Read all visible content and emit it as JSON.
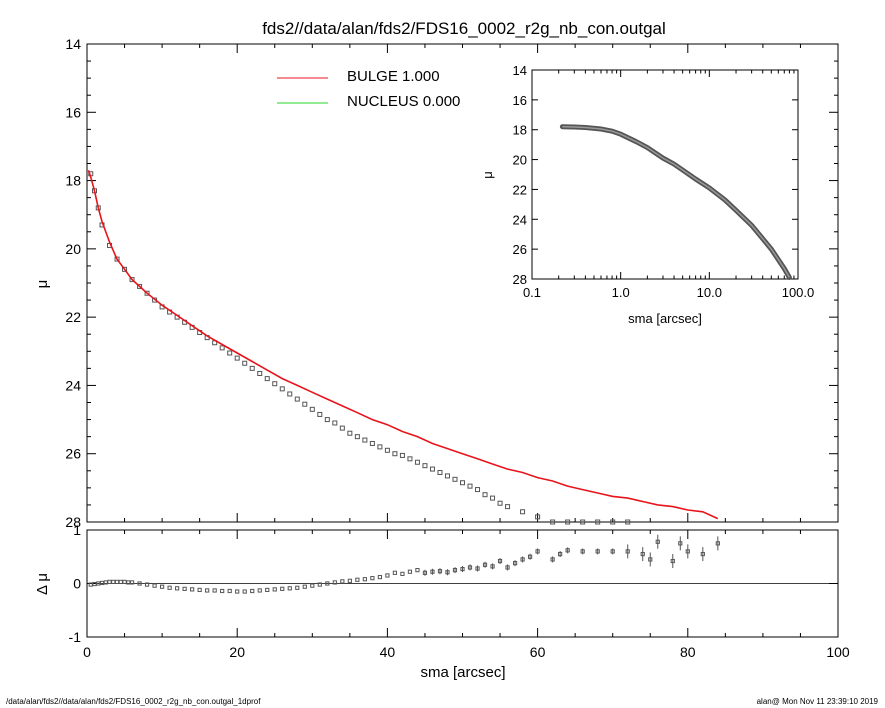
{
  "page": {
    "title": "fds2//data/alan/fds2/FDS16_0002_r2g_nb_con.outgal",
    "footer_left": "/data/alan/fds2//data/alan/fds2/FDS16_0002_r2g_nb_con.outgal_1dprof",
    "footer_right": "alan@  Mon Nov 11 23:39:10 2019"
  },
  "colors": {
    "bulge": "#e8141b",
    "nucleus": "#26d626",
    "data": "#555555"
  },
  "chart_data": [
    {
      "id": "main",
      "type": "scatter",
      "title": "fds2//data/alan/fds2/FDS16_0002_r2g_nb_con.outgal",
      "xlabel": "",
      "ylabel": "μ",
      "xlim": [
        0,
        100
      ],
      "ylim": [
        28,
        14
      ],
      "yticks": [
        14,
        16,
        18,
        20,
        22,
        24,
        26,
        28
      ],
      "legend": {
        "placement": "top-center",
        "entries": [
          {
            "label": "BULGE  1.000",
            "color": "#e8141b"
          },
          {
            "label": "NUCLEUS  0.000",
            "color": "#26d626"
          }
        ]
      },
      "series": [
        {
          "name": "BULGE",
          "kind": "line",
          "color": "#e8141b",
          "x": [
            0.2,
            0.5,
            1,
            1.5,
            2,
            3,
            4,
            5,
            6,
            7,
            8,
            10,
            12,
            14,
            16,
            18,
            20,
            22,
            24,
            26,
            28,
            30,
            32,
            34,
            36,
            38,
            40,
            42,
            44,
            46,
            48,
            50,
            52,
            54,
            56,
            58,
            60,
            62,
            64,
            66,
            68,
            70,
            72,
            74,
            76,
            78,
            80,
            82,
            84
          ],
          "y": [
            17.7,
            17.9,
            18.3,
            18.8,
            19.2,
            19.8,
            20.3,
            20.6,
            20.9,
            21.1,
            21.3,
            21.65,
            21.95,
            22.25,
            22.55,
            22.8,
            23.05,
            23.3,
            23.55,
            23.8,
            24.0,
            24.2,
            24.4,
            24.6,
            24.8,
            25.0,
            25.15,
            25.35,
            25.5,
            25.7,
            25.85,
            26.0,
            26.15,
            26.3,
            26.45,
            26.55,
            26.7,
            26.8,
            26.95,
            27.05,
            27.15,
            27.25,
            27.3,
            27.4,
            27.5,
            27.55,
            27.65,
            27.7,
            27.9
          ]
        },
        {
          "name": "data",
          "kind": "points",
          "color": "#555555",
          "x": [
            0.5,
            1,
            1.5,
            2,
            3,
            4,
            5,
            6,
            7,
            8,
            9,
            10,
            11,
            12,
            13,
            14,
            15,
            16,
            17,
            18,
            19,
            20,
            21,
            22,
            23,
            24,
            25,
            26,
            27,
            28,
            29,
            30,
            31,
            32,
            33,
            34,
            35,
            36,
            37,
            38,
            39,
            40,
            41,
            42,
            43,
            44,
            45,
            46,
            47,
            48,
            49,
            50,
            51,
            52,
            53,
            54,
            55,
            56,
            58,
            60,
            62,
            64,
            66,
            68,
            70,
            72
          ],
          "y": [
            17.8,
            18.3,
            18.8,
            19.3,
            19.9,
            20.3,
            20.6,
            20.9,
            21.1,
            21.3,
            21.5,
            21.7,
            21.85,
            22.0,
            22.15,
            22.3,
            22.45,
            22.6,
            22.75,
            22.9,
            23.05,
            23.2,
            23.35,
            23.5,
            23.65,
            23.8,
            23.95,
            24.1,
            24.25,
            24.4,
            24.55,
            24.7,
            24.85,
            25.0,
            25.1,
            25.25,
            25.4,
            25.5,
            25.6,
            25.7,
            25.8,
            25.9,
            26.0,
            26.05,
            26.15,
            26.25,
            26.35,
            26.45,
            26.55,
            26.65,
            26.75,
            26.85,
            26.95,
            27.05,
            27.2,
            27.3,
            27.45,
            27.55,
            27.7,
            27.85,
            28.0,
            28.0,
            28.0,
            28.0,
            28.0,
            28.0
          ]
        }
      ]
    },
    {
      "id": "inset",
      "type": "scatter",
      "xlabel": "sma [arcsec]",
      "ylabel": "μ",
      "xscale": "log",
      "xlim": [
        0.1,
        100
      ],
      "xticks": [
        0.1,
        1.0,
        10.0,
        100.0
      ],
      "xtick_labels": [
        "0.1",
        "1.0",
        "10.0",
        "100.0"
      ],
      "ylim": [
        28,
        14
      ],
      "yticks": [
        14,
        16,
        18,
        20,
        22,
        24,
        26,
        28
      ],
      "series": [
        {
          "name": "data",
          "kind": "thick-line",
          "color": "#555555",
          "x": [
            0.22,
            0.3,
            0.4,
            0.6,
            0.8,
            1.0,
            1.5,
            2,
            3,
            4,
            5,
            7,
            10,
            15,
            20,
            30,
            40,
            50,
            60,
            70,
            80
          ],
          "y": [
            17.8,
            17.82,
            17.85,
            17.95,
            18.1,
            18.3,
            18.8,
            19.2,
            19.9,
            20.3,
            20.7,
            21.3,
            21.9,
            22.7,
            23.4,
            24.4,
            25.3,
            26.0,
            26.7,
            27.3,
            27.9
          ]
        }
      ]
    },
    {
      "id": "residual",
      "type": "scatter",
      "xlabel": "sma [arcsec]",
      "ylabel": "Δ μ",
      "xlim": [
        0,
        100
      ],
      "xticks": [
        0,
        20,
        40,
        60,
        80,
        100
      ],
      "ylim": [
        -1,
        1
      ],
      "yticks": [
        -1,
        0,
        1
      ],
      "series": [
        {
          "name": "residual",
          "kind": "points",
          "color": "#555555",
          "x": [
            0.5,
            1,
            1.5,
            2,
            2.5,
            3,
            3.5,
            4,
            4.5,
            5,
            5.5,
            6,
            7,
            8,
            9,
            10,
            11,
            12,
            13,
            14,
            15,
            16,
            17,
            18,
            19,
            20,
            21,
            22,
            23,
            24,
            25,
            26,
            27,
            28,
            29,
            30,
            31,
            32,
            33,
            34,
            35,
            36,
            37,
            38,
            39,
            40,
            41,
            42,
            43,
            44,
            45,
            46,
            47,
            48,
            49,
            50,
            51,
            52,
            53,
            54,
            55,
            56,
            57,
            58,
            59,
            60,
            62,
            63,
            64,
            66,
            68,
            70,
            72,
            74,
            75,
            76,
            78,
            79,
            80,
            82,
            84
          ],
          "y": [
            -0.02,
            -0.01,
            0.0,
            0.01,
            0.02,
            0.03,
            0.03,
            0.03,
            0.03,
            0.03,
            0.02,
            0.02,
            0.0,
            -0.02,
            -0.04,
            -0.06,
            -0.08,
            -0.09,
            -0.1,
            -0.11,
            -0.12,
            -0.13,
            -0.13,
            -0.14,
            -0.14,
            -0.15,
            -0.15,
            -0.14,
            -0.13,
            -0.12,
            -0.11,
            -0.1,
            -0.09,
            -0.08,
            -0.06,
            -0.04,
            -0.02,
            0.0,
            0.02,
            0.04,
            0.05,
            0.07,
            0.08,
            0.1,
            0.12,
            0.15,
            0.2,
            0.18,
            0.22,
            0.25,
            0.2,
            0.22,
            0.23,
            0.21,
            0.25,
            0.27,
            0.3,
            0.28,
            0.35,
            0.32,
            0.42,
            0.3,
            0.38,
            0.45,
            0.5,
            0.6,
            0.45,
            0.55,
            0.62,
            0.6,
            0.6,
            0.6,
            0.6,
            0.55,
            0.45,
            0.78,
            0.42,
            0.75,
            0.6,
            0.55,
            0.75
          ]
        }
      ]
    }
  ]
}
